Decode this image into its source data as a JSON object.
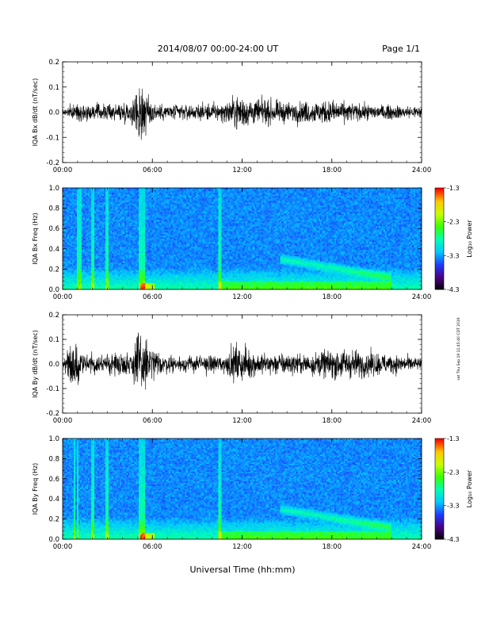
{
  "header": {
    "title": "2014/08/07  00:00-24:00 UT",
    "page": "Page 1/1"
  },
  "side_stamp": "sat Thu Sep 19 11:45:40 CDT 2019",
  "xlabel": "Universal Time (hh:mm)",
  "colors": {
    "trace": "#000000",
    "colormap": [
      "#000000",
      "#4b0082",
      "#1e3cff",
      "#00c8ff",
      "#00ffb4",
      "#38ff00",
      "#c8ff00",
      "#ffc800",
      "#ff0000"
    ]
  },
  "chart_data": [
    {
      "type": "line",
      "id": "bx_dbdt",
      "ylabel": "IQA Bx dB/dt (nT/sec)",
      "xlim": [
        0,
        24
      ],
      "xticks": [
        "00:00",
        "06:00",
        "12:00",
        "18:00",
        "24:00"
      ],
      "ylim": [
        -0.2,
        0.2
      ],
      "yticks": [
        "-0.2",
        "-0.1",
        "0.0",
        "0.1",
        "0.2"
      ],
      "envelope": [
        {
          "t": 0.0,
          "amp": 0.02
        },
        {
          "t": 1.0,
          "amp": 0.04
        },
        {
          "t": 2.0,
          "amp": 0.04
        },
        {
          "t": 3.0,
          "amp": 0.04
        },
        {
          "t": 4.5,
          "amp": 0.05
        },
        {
          "t": 5.0,
          "amp": 0.12
        },
        {
          "t": 5.3,
          "amp": 0.2
        },
        {
          "t": 5.7,
          "amp": 0.08
        },
        {
          "t": 6.5,
          "amp": 0.04
        },
        {
          "t": 9.0,
          "amp": 0.04
        },
        {
          "t": 11.0,
          "amp": 0.05
        },
        {
          "t": 11.5,
          "amp": 0.09
        },
        {
          "t": 12.5,
          "amp": 0.07
        },
        {
          "t": 15.0,
          "amp": 0.05
        },
        {
          "t": 18.0,
          "amp": 0.06
        },
        {
          "t": 20.0,
          "amp": 0.04
        },
        {
          "t": 24.0,
          "amp": 0.03
        }
      ]
    },
    {
      "type": "heatmap",
      "id": "bx_spec",
      "ylabel": "IQA Bx Freq (Hz)",
      "xlim": [
        0,
        24
      ],
      "xticks": [
        "00:00",
        "06:00",
        "12:00",
        "18:00",
        "24:00"
      ],
      "ylim": [
        0.0,
        1.0
      ],
      "yticks": [
        "0.0",
        "0.2",
        "0.4",
        "0.6",
        "0.8",
        "1.0"
      ],
      "colorbar": {
        "label": "Log₁₀ Power",
        "range": [
          -4.3,
          -1.3
        ],
        "ticks": [
          "-1.3",
          "-2.3",
          "-3.3",
          "-4.3"
        ]
      },
      "features": [
        {
          "kind": "pc_band",
          "t_start": 14.5,
          "t_end": 22.0,
          "f_start": 0.3,
          "f_end": 0.12
        },
        {
          "kind": "bursts",
          "times": [
            1.0,
            1.2,
            2.0,
            3.0,
            5.2,
            5.4,
            10.5
          ]
        }
      ]
    },
    {
      "type": "line",
      "id": "by_dbdt",
      "ylabel": "IQA By dB/dt (nT/sec)",
      "xlim": [
        0,
        24
      ],
      "xticks": [
        "00:00",
        "06:00",
        "12:00",
        "18:00",
        "24:00"
      ],
      "ylim": [
        -0.2,
        0.2
      ],
      "yticks": [
        "-0.2",
        "-0.1",
        "0.0",
        "0.1",
        "0.2"
      ],
      "envelope": [
        {
          "t": 0.0,
          "amp": 0.02
        },
        {
          "t": 0.8,
          "amp": 0.15
        },
        {
          "t": 1.2,
          "amp": 0.05
        },
        {
          "t": 2.0,
          "amp": 0.05
        },
        {
          "t": 3.0,
          "amp": 0.05
        },
        {
          "t": 4.5,
          "amp": 0.06
        },
        {
          "t": 5.2,
          "amp": 0.2
        },
        {
          "t": 5.8,
          "amp": 0.1
        },
        {
          "t": 6.5,
          "amp": 0.05
        },
        {
          "t": 8.0,
          "amp": 0.04
        },
        {
          "t": 11.0,
          "amp": 0.05
        },
        {
          "t": 11.5,
          "amp": 0.1
        },
        {
          "t": 13.0,
          "amp": 0.06
        },
        {
          "t": 16.0,
          "amp": 0.05
        },
        {
          "t": 18.5,
          "amp": 0.08
        },
        {
          "t": 21.0,
          "amp": 0.06
        },
        {
          "t": 24.0,
          "amp": 0.03
        }
      ]
    },
    {
      "type": "heatmap",
      "id": "by_spec",
      "ylabel": "IQA By Freq (Hz)",
      "xlim": [
        0,
        24
      ],
      "xticks": [
        "00:00",
        "06:00",
        "12:00",
        "18:00",
        "24:00"
      ],
      "ylim": [
        0.0,
        1.0
      ],
      "yticks": [
        "0.0",
        "0.2",
        "0.4",
        "0.6",
        "0.8",
        "1.0"
      ],
      "colorbar": {
        "label": "Log₁₀ Power",
        "range": [
          -4.3,
          -1.3
        ],
        "ticks": [
          "-1.3",
          "-2.3",
          "-3.3",
          "-4.3"
        ]
      },
      "features": [
        {
          "kind": "pc_band",
          "t_start": 14.5,
          "t_end": 22.0,
          "f_start": 0.3,
          "f_end": 0.12
        },
        {
          "kind": "bursts",
          "times": [
            0.8,
            1.0,
            2.0,
            3.0,
            5.2,
            5.4,
            10.5
          ]
        }
      ]
    }
  ]
}
